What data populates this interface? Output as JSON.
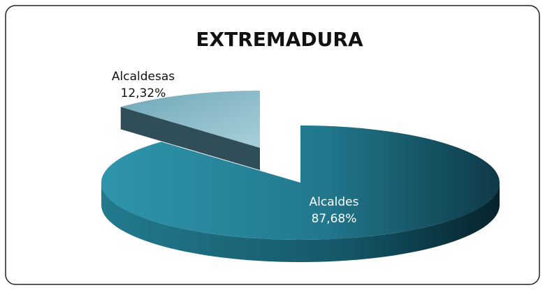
{
  "chart_data": {
    "type": "pie",
    "title": "EXTREMADURA",
    "categories": [
      "Alcaldes",
      "Alcaldesas"
    ],
    "values": [
      87.68,
      12.32
    ],
    "value_labels": [
      "87,68%",
      "12,32%"
    ],
    "colors": [
      "#2a8ba1",
      "#8dbfcc"
    ]
  }
}
